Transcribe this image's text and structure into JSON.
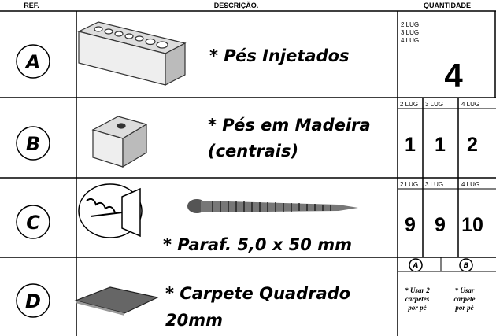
{
  "header": {
    "ref": "REF.",
    "description": "DESCRIÇÃO.",
    "quantity": "QUANTIDADE"
  },
  "rows": [
    {
      "ref": "A",
      "description": [
        "* Pés Injetados"
      ],
      "qty_labels": [
        "2 LUG",
        "3 LUG",
        "4 LUG"
      ],
      "quantities": [
        4
      ]
    },
    {
      "ref": "B",
      "description": [
        "* Pés em Madeira",
        "(centrais)"
      ],
      "qty_labels": [
        "2 LUG",
        "3 LUG",
        "4 LUG"
      ],
      "quantities": [
        1,
        1,
        2
      ]
    },
    {
      "ref": "C",
      "description": [
        "* Paraf. 5,0 x 50 mm"
      ],
      "qty_labels": [
        "2 LUG",
        "3 LUG",
        "4 LUG"
      ],
      "quantities": [
        9,
        9,
        10
      ]
    },
    {
      "ref": "D",
      "description": [
        "* Carpete Quadrado",
        "20mm"
      ],
      "sub_refs": [
        "A",
        "B"
      ],
      "notes": [
        [
          "* Usar 2",
          "carpetes",
          "por pé"
        ],
        [
          "* Usar",
          "carpete",
          "por pé"
        ]
      ]
    }
  ]
}
